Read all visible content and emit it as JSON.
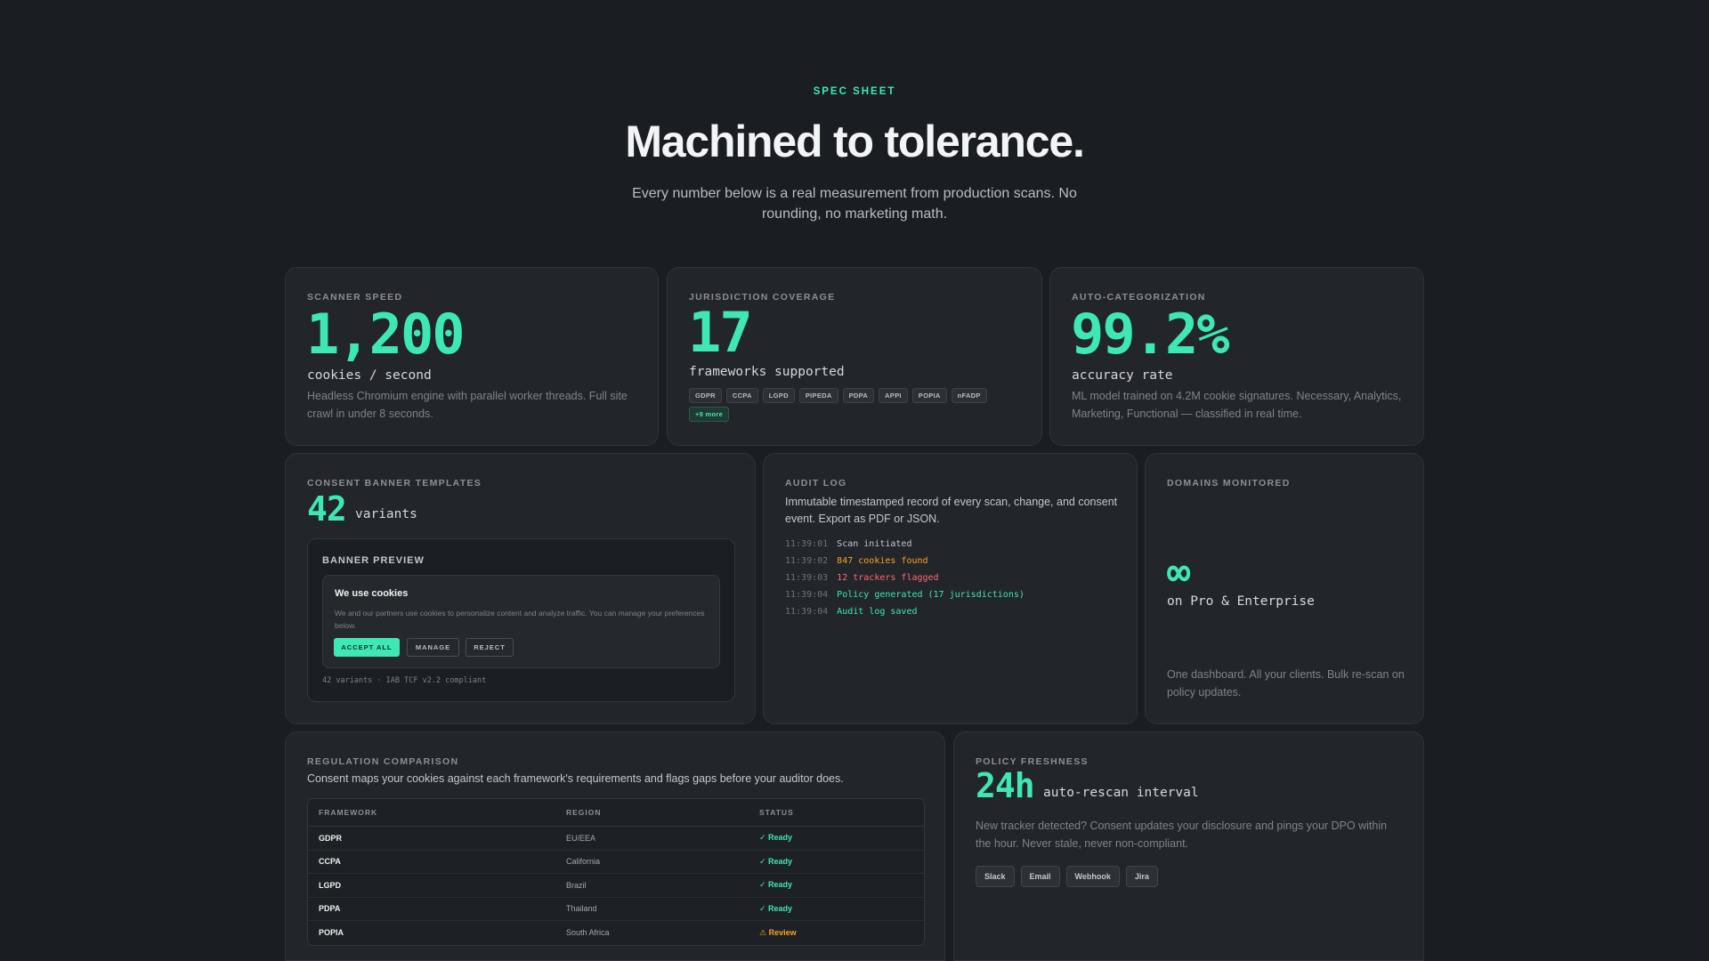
{
  "hero": {
    "eyebrow": "SPEC SHEET",
    "title": "Machined to tolerance.",
    "subtitle": "Every number below is a real measurement from production scans. No rounding, no marketing math."
  },
  "colors": {
    "background": "#1a1d21",
    "card": "#22252a",
    "accent": "#3ee8b5",
    "warning": "#f5a623",
    "danger": "#ff6b6b"
  },
  "scanner": {
    "label": "SCANNER SPEED",
    "value": "1,200",
    "unit": "cookies / second",
    "desc": "Headless Chromium engine with parallel worker threads. Full site crawl in under 8 seconds."
  },
  "jurisdiction": {
    "label": "JURISDICTION COVERAGE",
    "value": "17",
    "unit": "frameworks supported",
    "tags": [
      "GDPR",
      "CCPA",
      "LGPD",
      "PIPEDA",
      "PDPA",
      "APPI",
      "POPIA",
      "nFADP"
    ],
    "more": "+9 more"
  },
  "categorization": {
    "label": "AUTO-CATEGORIZATION",
    "value": "99.2%",
    "unit": "accuracy rate",
    "desc": "ML model trained on 4.2M cookie signatures. Necessary, Analytics, Marketing, Functional — classified in real time."
  },
  "templates": {
    "label": "CONSENT BANNER TEMPLATES",
    "value": "42",
    "unit": "variants",
    "preview_title": "BANNER PREVIEW",
    "banner_heading": "We use cookies",
    "banner_text": "We and our partners use cookies to personalize content and analyze traffic. You can manage your preferences below.",
    "accept_label": "ACCEPT ALL",
    "manage_label": "MANAGE",
    "reject_label": "REJECT",
    "footer": "42 variants · IAB TCF v2.2 compliant"
  },
  "audit": {
    "label": "AUDIT LOG",
    "desc": "Immutable timestamped record of every scan, change, and consent event. Export as PDF or JSON.",
    "entries": [
      {
        "time": "11:39:01",
        "text": "Scan initiated",
        "color": "#c4c8ce"
      },
      {
        "time": "11:39:02",
        "text": "847 cookies found",
        "color": "#f5a623"
      },
      {
        "time": "11:39:03",
        "text": "12 trackers flagged",
        "color": "#ff6b6b"
      },
      {
        "time": "11:39:04",
        "text": "Policy generated (17 jurisdictions)",
        "color": "#3ee8b5"
      },
      {
        "time": "11:39:04",
        "text": "Audit log saved",
        "color": "#3ee8b5"
      }
    ]
  },
  "domains": {
    "label": "DOMAINS MONITORED",
    "value": "∞",
    "unit": "on Pro & Enterprise",
    "desc": "One dashboard. All your clients. Bulk re-scan on policy updates."
  },
  "regulation": {
    "label": "REGULATION COMPARISON",
    "desc": "Consent maps your cookies against each framework's requirements and flags gaps before your auditor does.",
    "headers": [
      "FRAMEWORK",
      "REGION",
      "STATUS"
    ],
    "rows": [
      {
        "framework": "GDPR",
        "region": "EU/EEA",
        "status": "✓ Ready",
        "state": "ready"
      },
      {
        "framework": "CCPA",
        "region": "California",
        "status": "✓ Ready",
        "state": "ready"
      },
      {
        "framework": "LGPD",
        "region": "Brazil",
        "status": "✓ Ready",
        "state": "ready"
      },
      {
        "framework": "PDPA",
        "region": "Thailand",
        "status": "✓ Ready",
        "state": "ready"
      },
      {
        "framework": "POPIA",
        "region": "South Africa",
        "status": "⚠ Review",
        "state": "review"
      }
    ]
  },
  "freshness": {
    "label": "POLICY FRESHNESS",
    "value": "24h",
    "unit": "auto-rescan interval",
    "desc": "New tracker detected? Consent updates your disclosure and pings your DPO within the hour. Never stale, never non-compliant.",
    "chips": [
      "Slack",
      "Email",
      "Webhook",
      "Jira"
    ]
  }
}
